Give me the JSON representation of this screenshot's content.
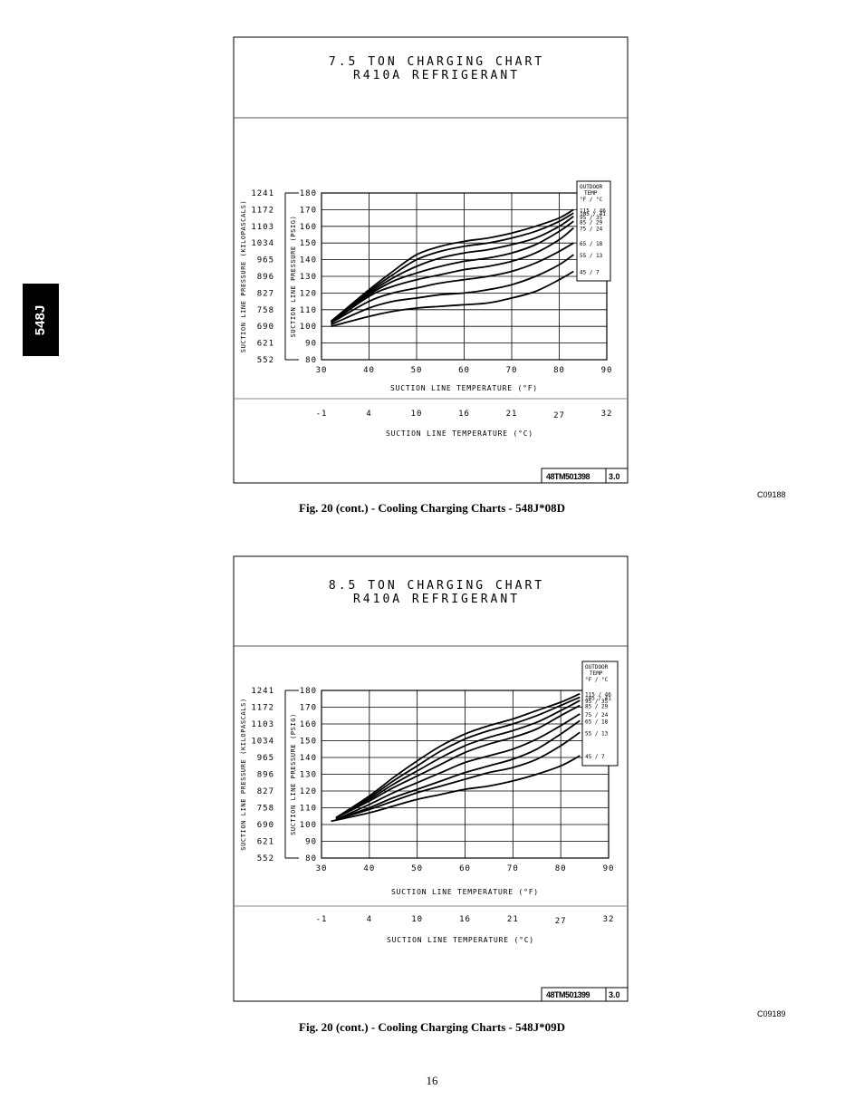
{
  "side_tab": {
    "label": "548J"
  },
  "page_number": "16",
  "chart_data": [
    {
      "type": "line",
      "title": "7.5 TON CHARGING CHART",
      "subtitle": "R410A REFRIGERANT",
      "xlabel": "SUCTION LINE TEMPERATURE (°F)",
      "ylabel": "SUCTION LINE PRESSURE (PSIG)",
      "y2label": "SUCTION LINE PRESSURE (KILOPASCALS)",
      "x2label": "SUCTION LINE TEMPERATURE (°C)",
      "xlim": [
        30,
        90
      ],
      "ylim": [
        80,
        180
      ],
      "x_ticks": [
        "30",
        "40",
        "50",
        "60",
        "70",
        "80",
        "90"
      ],
      "y_ticks": [
        "180",
        "170",
        "160",
        "150",
        "140",
        "130",
        "120",
        "110",
        "100",
        "90",
        "80"
      ],
      "kpa_ticks": [
        "1241",
        "1172",
        "1103",
        "1034",
        "965",
        "896",
        "827",
        "758",
        "690",
        "621",
        "552"
      ],
      "c_ticks": [
        "-1",
        "4",
        "10",
        "16",
        "21",
        "27",
        "32"
      ],
      "legend_title": "OUTDOOR TEMP",
      "legend_units": "°F / °C",
      "legend_placement": "right",
      "series": [
        {
          "name": "115 / 46",
          "x": [
            32,
            40,
            45,
            50,
            55,
            60,
            65,
            70,
            75,
            80,
            83
          ],
          "y": [
            103,
            122,
            133,
            143,
            148,
            151,
            153,
            156,
            160,
            165,
            170
          ]
        },
        {
          "name": "105 / 41",
          "x": [
            32,
            40,
            45,
            50,
            55,
            60,
            65,
            70,
            75,
            80,
            83
          ],
          "y": [
            103,
            121,
            131,
            140,
            145,
            148,
            150,
            153,
            157,
            163,
            168
          ]
        },
        {
          "name": "95 / 35",
          "x": [
            32,
            40,
            45,
            50,
            55,
            60,
            65,
            70,
            75,
            80,
            83
          ],
          "y": [
            103,
            120,
            129,
            136,
            141,
            144,
            146,
            149,
            153,
            160,
            166
          ]
        },
        {
          "name": "85 / 29",
          "x": [
            32,
            40,
            45,
            50,
            55,
            60,
            65,
            70,
            75,
            80,
            83
          ],
          "y": [
            103,
            119,
            127,
            132,
            136,
            139,
            141,
            144,
            149,
            157,
            163
          ]
        },
        {
          "name": "75 / 24",
          "x": [
            32,
            40,
            45,
            50,
            55,
            60,
            65,
            70,
            75,
            80,
            83
          ],
          "y": [
            102,
            118,
            124,
            128,
            131,
            134,
            136,
            139,
            144,
            152,
            159
          ]
        },
        {
          "name": "65 / 18",
          "x": [
            32,
            40,
            45,
            50,
            55,
            60,
            65,
            70,
            75,
            80,
            83
          ],
          "y": [
            102,
            115,
            120,
            123,
            126,
            128,
            130,
            133,
            138,
            145,
            150
          ]
        },
        {
          "name": "55 / 13",
          "x": [
            32,
            40,
            45,
            50,
            55,
            60,
            65,
            70,
            75,
            80,
            83
          ],
          "y": [
            101,
            111,
            115,
            117,
            119,
            120,
            122,
            125,
            130,
            137,
            143
          ]
        },
        {
          "name": "45 / 7",
          "x": [
            32,
            40,
            45,
            50,
            55,
            60,
            65,
            70,
            75,
            80,
            83
          ],
          "y": [
            100,
            106,
            109,
            111,
            112,
            113,
            114,
            117,
            121,
            128,
            133
          ]
        }
      ],
      "code": "48TM501398",
      "rev": "3.0",
      "figure_id": "C09188",
      "caption": "Fig. 20 (cont.) - Cooling Charging Charts - 548J*08D"
    },
    {
      "type": "line",
      "title": "8.5 TON CHARGING CHART",
      "subtitle": "R410A REFRIGERANT",
      "xlabel": "SUCTION LINE TEMPERATURE (°F)",
      "ylabel": "SUCTION LINE PRESSURE (PSIG)",
      "y2label": "SUCTION LINE PRESSURE (KILOPASCALS)",
      "x2label": "SUCTION LINE TEMPERATURE (°C)",
      "xlim": [
        30,
        90
      ],
      "ylim": [
        80,
        180
      ],
      "x_ticks": [
        "30",
        "40",
        "50",
        "60",
        "70",
        "80",
        "90"
      ],
      "y_ticks": [
        "180",
        "170",
        "160",
        "150",
        "140",
        "130",
        "120",
        "110",
        "100",
        "90",
        "80"
      ],
      "kpa_ticks": [
        "1241",
        "1172",
        "1103",
        "1034",
        "965",
        "896",
        "827",
        "758",
        "690",
        "621",
        "552"
      ],
      "c_ticks": [
        "-1",
        "4",
        "10",
        "16",
        "21",
        "27",
        "32"
      ],
      "legend_title": "OUTDOOR TEMP",
      "legend_units": "°F / °C",
      "legend_placement": "right",
      "series": [
        {
          "name": "115 / 46",
          "x": [
            33,
            40,
            45,
            50,
            55,
            60,
            65,
            70,
            75,
            80,
            84
          ],
          "y": [
            104,
            117,
            128,
            138,
            147,
            154,
            159,
            163,
            168,
            173,
            178
          ]
        },
        {
          "name": "105 / 41",
          "x": [
            33,
            40,
            45,
            50,
            55,
            60,
            65,
            70,
            75,
            80,
            84
          ],
          "y": [
            104,
            116,
            126,
            135,
            144,
            151,
            156,
            160,
            165,
            171,
            176
          ]
        },
        {
          "name": "95 / 35",
          "x": [
            33,
            40,
            45,
            50,
            55,
            60,
            65,
            70,
            75,
            80,
            84
          ],
          "y": [
            104,
            115,
            124,
            132,
            140,
            147,
            152,
            156,
            161,
            168,
            174
          ]
        },
        {
          "name": "85 / 29",
          "x": [
            33,
            40,
            45,
            50,
            55,
            60,
            65,
            70,
            75,
            80,
            84
          ],
          "y": [
            104,
            114,
            122,
            129,
            136,
            143,
            148,
            152,
            157,
            165,
            171
          ]
        },
        {
          "name": "75 / 24",
          "x": [
            33,
            40,
            45,
            50,
            55,
            60,
            65,
            70,
            75,
            80,
            84
          ],
          "y": [
            103,
            112,
            119,
            125,
            131,
            137,
            141,
            145,
            151,
            159,
            166
          ]
        },
        {
          "name": "65 / 18",
          "x": [
            33,
            40,
            45,
            50,
            55,
            60,
            65,
            70,
            75,
            80,
            84
          ],
          "y": [
            103,
            110,
            116,
            121,
            126,
            131,
            135,
            139,
            145,
            154,
            162
          ]
        },
        {
          "name": "55 / 13",
          "x": [
            33,
            40,
            45,
            50,
            55,
            60,
            65,
            70,
            75,
            80,
            84
          ],
          "y": [
            103,
            109,
            114,
            119,
            123,
            127,
            131,
            134,
            139,
            147,
            155
          ]
        },
        {
          "name": "45 / 7",
          "x": [
            32,
            40,
            45,
            50,
            55,
            60,
            65,
            70,
            75,
            80,
            84
          ],
          "y": [
            102,
            107,
            111,
            115,
            118,
            121,
            123,
            126,
            130,
            135,
            141
          ]
        }
      ],
      "code": "48TM501399",
      "rev": "3.0",
      "figure_id": "C09189",
      "caption": "Fig. 20 (cont.) - Cooling Charging Charts - 548J*09D"
    }
  ]
}
